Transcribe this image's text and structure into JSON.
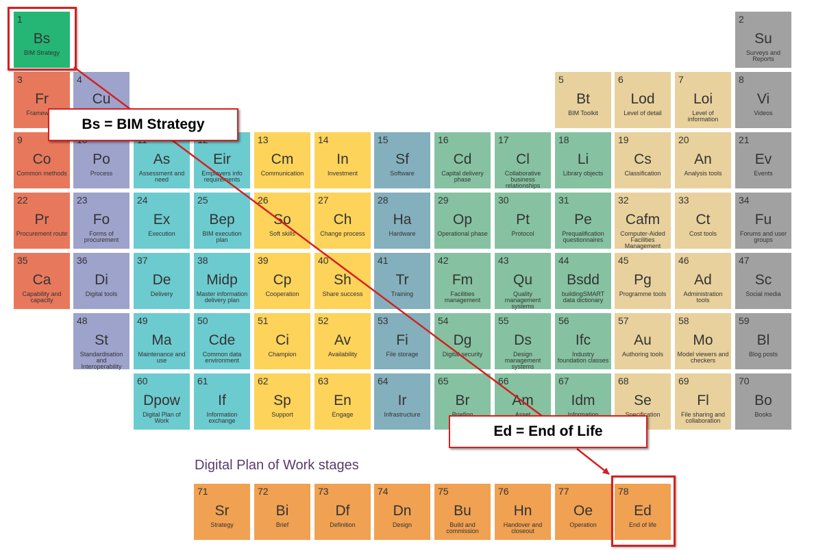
{
  "colors": {
    "red": "#e8785c",
    "purple": "#9ea3cc",
    "teal": "#6ccbcf",
    "yellow": "#fdd35a",
    "bluegrey": "#84afbd",
    "green": "#86c2a1",
    "tan": "#e8d19d",
    "grey": "#a1a1a1",
    "orange": "#f0a152",
    "highlight_green": "#25b675",
    "annotation_red": "#d42020"
  },
  "elements": [
    {
      "num": "1",
      "sym": "Bs",
      "name": "BIM Strategy",
      "group": "highlight_green"
    },
    {
      "num": "2",
      "sym": "Su",
      "name": "Surveys and Reports",
      "group": "grey"
    },
    {
      "num": "3",
      "sym": "Fr",
      "name": "Framework",
      "group": "red"
    },
    {
      "num": "4",
      "sym": "Cu",
      "name": "",
      "group": "purple"
    },
    {
      "num": "5",
      "sym": "Bt",
      "name": "BIM Toolkit",
      "group": "tan"
    },
    {
      "num": "6",
      "sym": "Lod",
      "name": "Level of detail",
      "group": "tan"
    },
    {
      "num": "7",
      "sym": "Loi",
      "name": "Level of information",
      "group": "tan"
    },
    {
      "num": "8",
      "sym": "Vi",
      "name": "Videos",
      "group": "grey"
    },
    {
      "num": "9",
      "sym": "Co",
      "name": "Common methods",
      "group": "red"
    },
    {
      "num": "10",
      "sym": "Po",
      "name": "Process",
      "group": "purple"
    },
    {
      "num": "11",
      "sym": "As",
      "name": "Assessment and need",
      "group": "teal"
    },
    {
      "num": "12",
      "sym": "Eir",
      "name": "Employers info requirements",
      "group": "teal"
    },
    {
      "num": "13",
      "sym": "Cm",
      "name": "Communication",
      "group": "yellow"
    },
    {
      "num": "14",
      "sym": "In",
      "name": "Investment",
      "group": "yellow"
    },
    {
      "num": "15",
      "sym": "Sf",
      "name": "Software",
      "group": "bluegrey"
    },
    {
      "num": "16",
      "sym": "Cd",
      "name": "Capital delivery phase",
      "group": "green"
    },
    {
      "num": "17",
      "sym": "Cl",
      "name": "Collaborative business relationships",
      "group": "green"
    },
    {
      "num": "18",
      "sym": "Li",
      "name": "Library objects",
      "group": "green"
    },
    {
      "num": "19",
      "sym": "Cs",
      "name": "Classification",
      "group": "tan"
    },
    {
      "num": "20",
      "sym": "An",
      "name": "Analysis tools",
      "group": "tan"
    },
    {
      "num": "21",
      "sym": "Ev",
      "name": "Events",
      "group": "grey"
    },
    {
      "num": "22",
      "sym": "Pr",
      "name": "Procurement route",
      "group": "red"
    },
    {
      "num": "23",
      "sym": "Fo",
      "name": "Forms of procurement",
      "group": "purple"
    },
    {
      "num": "24",
      "sym": "Ex",
      "name": "Execution",
      "group": "teal"
    },
    {
      "num": "25",
      "sym": "Bep",
      "name": "BIM execution plan",
      "group": "teal"
    },
    {
      "num": "26",
      "sym": "So",
      "name": "Soft skills",
      "group": "yellow"
    },
    {
      "num": "27",
      "sym": "Ch",
      "name": "Change process",
      "group": "yellow"
    },
    {
      "num": "28",
      "sym": "Ha",
      "name": "Hardware",
      "group": "bluegrey"
    },
    {
      "num": "29",
      "sym": "Op",
      "name": "Operational phase",
      "group": "green"
    },
    {
      "num": "30",
      "sym": "Pt",
      "name": "Protocol",
      "group": "green"
    },
    {
      "num": "31",
      "sym": "Pe",
      "name": "Prequalification questionnaires",
      "group": "green"
    },
    {
      "num": "32",
      "sym": "Cafm",
      "name": "Computer-Aided Facilities Management",
      "group": "tan"
    },
    {
      "num": "33",
      "sym": "Ct",
      "name": "Cost tools",
      "group": "tan"
    },
    {
      "num": "34",
      "sym": "Fu",
      "name": "Forums and user groups",
      "group": "grey"
    },
    {
      "num": "35",
      "sym": "Ca",
      "name": "Capability and capacity",
      "group": "red"
    },
    {
      "num": "36",
      "sym": "Di",
      "name": "Digital tools",
      "group": "purple"
    },
    {
      "num": "37",
      "sym": "De",
      "name": "Delivery",
      "group": "teal"
    },
    {
      "num": "38",
      "sym": "Midp",
      "name": "Master information delivery plan",
      "group": "teal"
    },
    {
      "num": "39",
      "sym": "Cp",
      "name": "Cooperation",
      "group": "yellow"
    },
    {
      "num": "40",
      "sym": "Sh",
      "name": "Share success",
      "group": "yellow"
    },
    {
      "num": "41",
      "sym": "Tr",
      "name": "Training",
      "group": "bluegrey"
    },
    {
      "num": "42",
      "sym": "Fm",
      "name": "Facilities management",
      "group": "green"
    },
    {
      "num": "43",
      "sym": "Qu",
      "name": "Quality management systems",
      "group": "green"
    },
    {
      "num": "44",
      "sym": "Bsdd",
      "name": "buildingSMART data dictionary",
      "group": "green"
    },
    {
      "num": "45",
      "sym": "Pg",
      "name": "Programme tools",
      "group": "tan"
    },
    {
      "num": "46",
      "sym": "Ad",
      "name": "Administration tools",
      "group": "tan"
    },
    {
      "num": "47",
      "sym": "Sc",
      "name": "Social media",
      "group": "grey"
    },
    {
      "num": "48",
      "sym": "St",
      "name": "Standardisation and Interoperability",
      "group": "purple"
    },
    {
      "num": "49",
      "sym": "Ma",
      "name": "Maintenance and use",
      "group": "teal"
    },
    {
      "num": "50",
      "sym": "Cde",
      "name": "Common data environment",
      "group": "teal"
    },
    {
      "num": "51",
      "sym": "Ci",
      "name": "Champion",
      "group": "yellow"
    },
    {
      "num": "52",
      "sym": "Av",
      "name": "Availability",
      "group": "yellow"
    },
    {
      "num": "53",
      "sym": "Fi",
      "name": "File storage",
      "group": "bluegrey"
    },
    {
      "num": "54",
      "sym": "Dg",
      "name": "Digital security",
      "group": "green"
    },
    {
      "num": "55",
      "sym": "Ds",
      "name": "Design management systems",
      "group": "green"
    },
    {
      "num": "56",
      "sym": "Ifc",
      "name": "Industry foundation classes",
      "group": "green"
    },
    {
      "num": "57",
      "sym": "Au",
      "name": "Authoring tools",
      "group": "tan"
    },
    {
      "num": "58",
      "sym": "Mo",
      "name": "Model viewers and checkers",
      "group": "tan"
    },
    {
      "num": "59",
      "sym": "Bl",
      "name": "Blog posts",
      "group": "grey"
    },
    {
      "num": "60",
      "sym": "Dpow",
      "name": "Digital Plan of Work",
      "group": "teal"
    },
    {
      "num": "61",
      "sym": "If",
      "name": "Information exchange",
      "group": "teal"
    },
    {
      "num": "62",
      "sym": "Sp",
      "name": "Support",
      "group": "yellow"
    },
    {
      "num": "63",
      "sym": "En",
      "name": "Engage",
      "group": "yellow"
    },
    {
      "num": "64",
      "sym": "Ir",
      "name": "Infrastructure",
      "group": "bluegrey"
    },
    {
      "num": "65",
      "sym": "Br",
      "name": "Briefing",
      "group": "green"
    },
    {
      "num": "66",
      "sym": "Am",
      "name": "Asset",
      "group": "green"
    },
    {
      "num": "67",
      "sym": "Idm",
      "name": "Information",
      "group": "green"
    },
    {
      "num": "68",
      "sym": "Se",
      "name": "Specification",
      "group": "tan"
    },
    {
      "num": "69",
      "sym": "Fl",
      "name": "File sharing and collaboration",
      "group": "tan"
    },
    {
      "num": "70",
      "sym": "Bo",
      "name": "Books",
      "group": "grey"
    }
  ],
  "stages_title": "Digital Plan of Work stages",
  "stages": [
    {
      "num": "71",
      "sym": "Sr",
      "name": "Strategy",
      "group": "orange"
    },
    {
      "num": "72",
      "sym": "Bi",
      "name": "Brief",
      "group": "orange"
    },
    {
      "num": "73",
      "sym": "Df",
      "name": "Definition",
      "group": "orange"
    },
    {
      "num": "74",
      "sym": "Dn",
      "name": "Design",
      "group": "orange"
    },
    {
      "num": "75",
      "sym": "Bu",
      "name": "Build and commission",
      "group": "orange"
    },
    {
      "num": "76",
      "sym": "Hn",
      "name": "Handover and closeout",
      "group": "orange"
    },
    {
      "num": "77",
      "sym": "Oe",
      "name": "Operation",
      "group": "orange"
    },
    {
      "num": "78",
      "sym": "Ed",
      "name": "End of life",
      "group": "orange"
    }
  ],
  "annotations": {
    "bs_label": "Bs = BIM Strategy",
    "ed_label": "Ed = End of Life"
  }
}
